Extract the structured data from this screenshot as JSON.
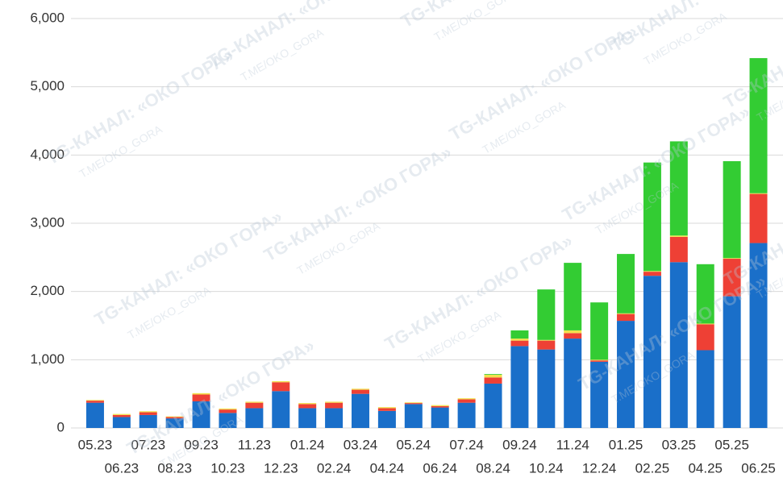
{
  "chart_data": {
    "type": "bar",
    "stacked": true,
    "watermark": [
      "TG-КАНАЛ: «ОКО ГОРА»",
      "T.ME/OKO_GORA"
    ],
    "categories": [
      "05.23",
      "06.23",
      "07.23",
      "08.23",
      "09.23",
      "10.23",
      "11.23",
      "12.23",
      "01.24",
      "02.24",
      "03.24",
      "04.24",
      "05.24",
      "06.24",
      "07.24",
      "08.24",
      "09.24",
      "10.24",
      "11.24",
      "12.24",
      "01.25",
      "02.25",
      "03.25",
      "04.25",
      "05.25",
      "06.25"
    ],
    "series": [
      {
        "color": "#1a6fc9",
        "values": [
          370,
          160,
          190,
          140,
          390,
          220,
          290,
          540,
          290,
          290,
          500,
          250,
          350,
          300,
          370,
          650,
          1200,
          1150,
          1310,
          970,
          1570,
          2230,
          2430,
          1140,
          1930,
          2710
        ]
      },
      {
        "color": "#ee4035",
        "values": [
          30,
          30,
          40,
          20,
          100,
          50,
          80,
          130,
          60,
          80,
          60,
          40,
          15,
          20,
          50,
          90,
          80,
          130,
          80,
          20,
          100,
          60,
          370,
          380,
          550,
          720
        ]
      },
      {
        "color": "#f2e14c",
        "values": [
          10,
          15,
          15,
          10,
          20,
          15,
          15,
          15,
          15,
          15,
          15,
          15,
          10,
          15,
          15,
          40,
          30,
          10,
          40,
          10,
          10,
          10,
          20,
          10,
          10,
          10
        ]
      },
      {
        "color": "#33cc33",
        "values": [
          0,
          0,
          0,
          0,
          0,
          0,
          0,
          0,
          0,
          0,
          0,
          0,
          0,
          0,
          0,
          10,
          120,
          740,
          990,
          840,
          870,
          1590,
          1380,
          870,
          1420,
          1980
        ]
      }
    ],
    "ylim": [
      0,
      6000
    ],
    "yticks": [
      0,
      {
        "value": 1000,
        "label": "1,000"
      },
      {
        "value": 2000,
        "label": "2,000"
      },
      {
        "value": 3000,
        "label": "3,000"
      },
      {
        "value": 4000,
        "label": "4,000"
      },
      {
        "value": 5000,
        "label": "5,000"
      },
      {
        "value": 6000,
        "label": "6,000"
      }
    ],
    "grid": true
  }
}
